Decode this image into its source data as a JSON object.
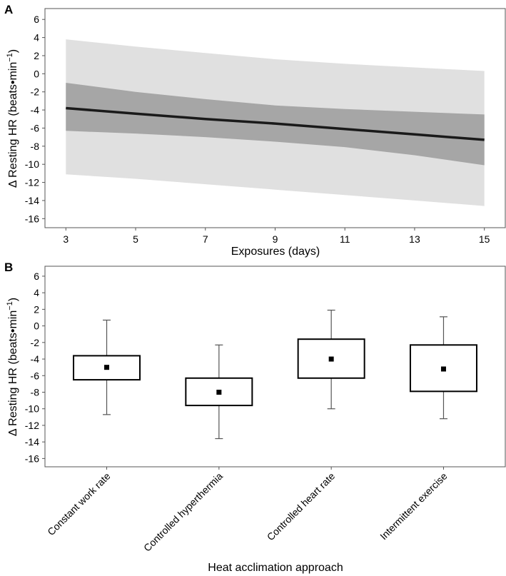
{
  "chart_data": [
    {
      "type": "line",
      "panel_label": "A",
      "xlabel": "Exposures (days)",
      "ylabel_main": "Δ Resting HR  (beats•min",
      "ylabel_sup": "−1",
      "ylabel_close": ")",
      "xlim": [
        2.4,
        15.6
      ],
      "ylim": [
        -17,
        7.2
      ],
      "xticks": [
        3,
        5,
        7,
        9,
        11,
        13,
        15
      ],
      "yticks": [
        6,
        4,
        2,
        0,
        -2,
        -4,
        -6,
        -8,
        -10,
        -12,
        -14,
        -16
      ],
      "x": [
        3,
        5,
        7,
        9,
        11,
        13,
        15
      ],
      "mean": [
        -3.8,
        -4.4,
        -5.0,
        -5.5,
        -6.1,
        -6.7,
        -7.3
      ],
      "ci_lower": [
        -6.3,
        -6.6,
        -7.0,
        -7.5,
        -8.1,
        -9.0,
        -10.1
      ],
      "ci_upper": [
        -1.0,
        -2.0,
        -2.8,
        -3.5,
        -3.9,
        -4.2,
        -4.5
      ],
      "pi_lower": [
        -11.1,
        -11.6,
        -12.2,
        -12.8,
        -13.4,
        -14.0,
        -14.6
      ],
      "pi_upper": [
        3.8,
        3.0,
        2.3,
        1.6,
        1.1,
        0.7,
        0.3
      ],
      "colors": {
        "line": "#1a1a1a",
        "ci_band": "#a6a6a6",
        "pi_band": "#e0e0e0"
      }
    },
    {
      "type": "box",
      "panel_label": "B",
      "xlabel": "Heat acclimation approach",
      "ylabel_main": "Δ Resting HR  (beats•min",
      "ylabel_sup": "−1",
      "ylabel_close": ")",
      "ylim": [
        -17,
        7.2
      ],
      "yticks": [
        6,
        4,
        2,
        0,
        -2,
        -4,
        -6,
        -8,
        -10,
        -12,
        -14,
        -16
      ],
      "categories": [
        "Constant work rate",
        "Controlled hyperthermia",
        "Controlled heart rate",
        "Intermittent exercise"
      ],
      "mean": [
        -5.0,
        -8.0,
        -4.0,
        -5.2
      ],
      "box_upper": [
        -3.6,
        -6.3,
        -1.6,
        -2.3
      ],
      "box_lower": [
        -6.5,
        -9.6,
        -6.3,
        -7.9
      ],
      "whisker_upper": [
        0.7,
        -2.3,
        1.9,
        1.1
      ],
      "whisker_lower": [
        -10.7,
        -13.6,
        -10.0,
        -11.2
      ]
    }
  ]
}
